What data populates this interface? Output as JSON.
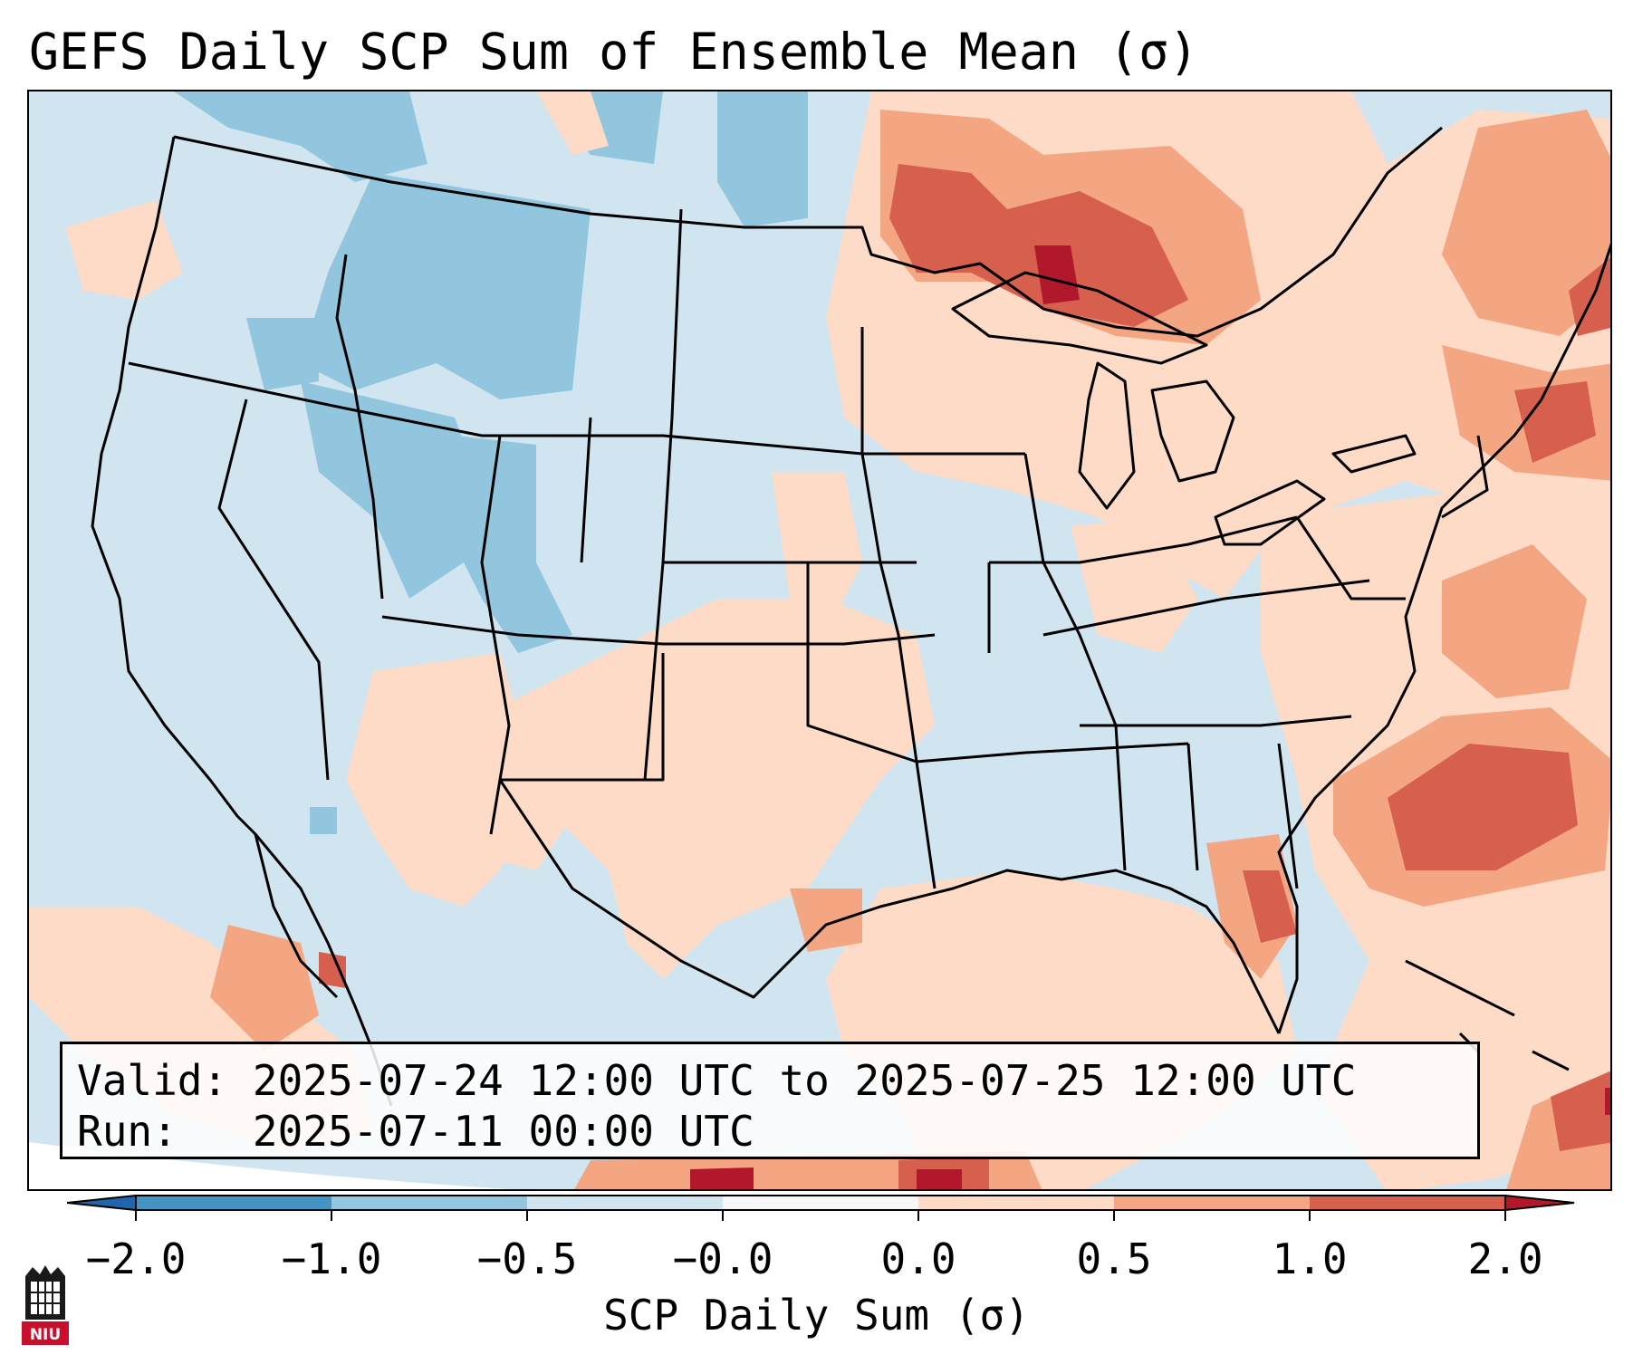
{
  "title": "GEFS Daily SCP Sum of Ensemble Mean (σ)",
  "info": {
    "valid_label": "Valid:",
    "valid_value": "2025-07-24 12:00 UTC to 2025-07-25 12:00 UTC",
    "run_label": "Run:",
    "run_value": "2025-07-11 00:00 UTC"
  },
  "colorbar": {
    "label": "SCP Daily Sum (σ)",
    "ticks": [
      "−2.0",
      "−1.0",
      "−0.5",
      "−0.0",
      "0.0",
      "0.5",
      "1.0",
      "2.0"
    ],
    "bins": [
      {
        "color": "#2166ac",
        "from": "<-2.0"
      },
      {
        "color": "#4393c3",
        "from": "-2.0",
        "to": "-1.0"
      },
      {
        "color": "#92c5de",
        "from": "-1.0",
        "to": "-0.5"
      },
      {
        "color": "#d1e5f0",
        "from": "-0.5",
        "to": "-0.0"
      },
      {
        "color": "#f7f7f7",
        "from": "-0.0",
        "to": "0.0"
      },
      {
        "color": "#fddbc7",
        "from": "0.0",
        "to": "0.5"
      },
      {
        "color": "#f4a582",
        "from": "0.5",
        "to": "1.0"
      },
      {
        "color": "#d6604d",
        "from": "1.0",
        "to": "2.0"
      },
      {
        "color": "#b2182b",
        "from": ">2.0"
      }
    ]
  },
  "logo_text": "NIU",
  "colors": {
    "dark_blue": "#2166ac",
    "mid_blue": "#4393c3",
    "light_blue": "#92c5de",
    "pale_blue": "#d1e5f0",
    "neutral": "#f7f7f7",
    "pale_red": "#fddbc7",
    "light_red": "#f4a582",
    "mid_red": "#d6604d",
    "dark_red": "#b2182b"
  }
}
